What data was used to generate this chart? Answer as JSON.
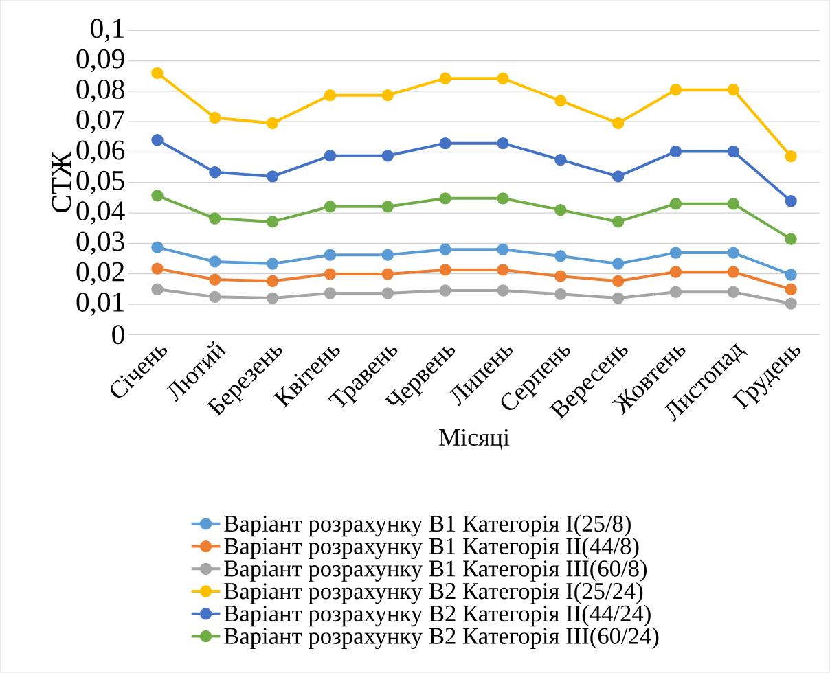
{
  "chart_data": {
    "type": "line",
    "xlabel": "Місяці",
    "ylabel": "СТЖ",
    "categories": [
      "Січень",
      "Лютий",
      "Березень",
      "Квітень",
      "Травень",
      "Червень",
      "Липень",
      "Серпень",
      "Вересень",
      "Жовтень",
      "Листопад",
      "Грудень"
    ],
    "series": [
      {
        "name": "Варіант розрахунку В1 Категорія I(25/8)",
        "color": "#5b9bd5",
        "values": [
          0.0287,
          0.024,
          0.0233,
          0.0262,
          0.0262,
          0.028,
          0.028,
          0.0258,
          0.0233,
          0.0269,
          0.0269,
          0.0197
        ]
      },
      {
        "name": "Варіант розрахунку В1 Категорія II(44/8)",
        "color": "#ed7d31",
        "values": [
          0.0217,
          0.0181,
          0.0176,
          0.0199,
          0.0199,
          0.0213,
          0.0213,
          0.0192,
          0.0176,
          0.0206,
          0.0206,
          0.0149
        ]
      },
      {
        "name": "Варіант розрахунку В1 Категорія III(60/8)",
        "color": "#a5a5a5",
        "values": [
          0.0149,
          0.0124,
          0.012,
          0.0136,
          0.0136,
          0.0145,
          0.0145,
          0.0133,
          0.012,
          0.014,
          0.014,
          0.0102
        ]
      },
      {
        "name": "Варіант розрахунку В2 Категорія I(25/24)",
        "color": "#ffc000",
        "values": [
          0.086,
          0.0713,
          0.0695,
          0.0787,
          0.0787,
          0.0842,
          0.0842,
          0.0769,
          0.0695,
          0.0805,
          0.0805,
          0.0586
        ]
      },
      {
        "name": "Варіант розрахунку В2 Категорія II(44/24)",
        "color": "#4472c4",
        "values": [
          0.064,
          0.0534,
          0.052,
          0.0588,
          0.0588,
          0.0629,
          0.0629,
          0.0575,
          0.052,
          0.0602,
          0.0602,
          0.0439
        ]
      },
      {
        "name": "Варіант розрахунку В2 Категорія III(60/24)",
        "color": "#70ad47",
        "values": [
          0.0457,
          0.0382,
          0.0371,
          0.0421,
          0.0421,
          0.0448,
          0.0448,
          0.041,
          0.0371,
          0.043,
          0.043,
          0.0314
        ]
      }
    ],
    "ylim": [
      0,
      0.1
    ],
    "yticks": [
      0,
      {
        "value": 0.01,
        "label": "0,01"
      },
      {
        "value": 0.02,
        "label": "0,02"
      },
      {
        "value": 0.03,
        "label": "0,03"
      },
      {
        "value": 0.04,
        "label": "0,04"
      },
      {
        "value": 0.05,
        "label": "0,05"
      },
      {
        "value": 0.06,
        "label": "0,06"
      },
      {
        "value": 0.07,
        "label": "0,07"
      },
      {
        "value": 0.08,
        "label": "0,08"
      },
      {
        "value": 0.09,
        "label": "0,09"
      },
      {
        "value": 0.1,
        "label": "0,1"
      }
    ],
    "grid": "y",
    "legend": "bottom",
    "marker": "circle",
    "line_style": "solid"
  }
}
